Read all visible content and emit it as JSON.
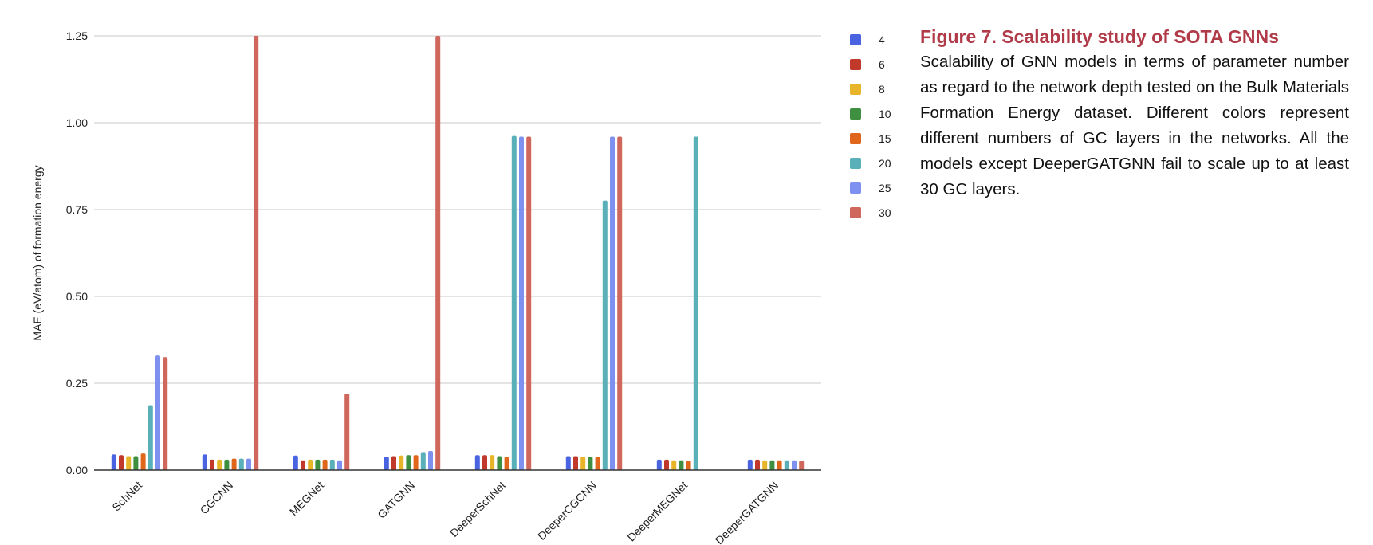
{
  "caption": {
    "title": "Figure 7.  Scalability study of SOTA GNNs",
    "body": "Scalability of GNN models in terms of parameter number as regard to the network depth tested on the Bulk Materials Formation Energy dataset. Different colors represent different numbers of GC layers in the networks. All the models except DeeperGATGNN fail to scale up to at least 30 GC layers."
  },
  "chart_data": {
    "type": "bar",
    "title": "",
    "xlabel": "",
    "ylabel": "MAE (eV/atom) of formation energy",
    "ylim": [
      0,
      1.25
    ],
    "yticks": [
      "0.00",
      "0.25",
      "0.50",
      "0.75",
      "1.00",
      "1.25"
    ],
    "grid": true,
    "legend_position": "right",
    "categories": [
      "SchNet",
      "CGCNN",
      "MEGNet",
      "GATGNN",
      "DeeperSchNet",
      "DeeperCGCNN",
      "DeeperMEGNet",
      "DeeperGATGNN"
    ],
    "series": [
      {
        "name": "4",
        "color": "#4a63e0",
        "values": [
          0.045,
          0.045,
          0.042,
          0.038,
          0.043,
          0.04,
          0.03,
          0.03
        ]
      },
      {
        "name": "6",
        "color": "#c0392b",
        "values": [
          0.043,
          0.03,
          0.028,
          0.04,
          0.043,
          0.04,
          0.03,
          0.03
        ]
      },
      {
        "name": "8",
        "color": "#e8b52a",
        "values": [
          0.04,
          0.03,
          0.03,
          0.042,
          0.043,
          0.038,
          0.028,
          0.028
        ]
      },
      {
        "name": "10",
        "color": "#3e9040",
        "values": [
          0.04,
          0.03,
          0.03,
          0.043,
          0.04,
          0.038,
          0.028,
          0.028
        ]
      },
      {
        "name": "15",
        "color": "#e0661c",
        "values": [
          0.048,
          0.033,
          0.03,
          0.043,
          0.038,
          0.038,
          0.027,
          0.028
        ]
      },
      {
        "name": "20",
        "color": "#5ab0b8",
        "values": [
          0.187,
          0.033,
          0.03,
          0.052,
          0.962,
          0.776,
          0.96,
          0.028
        ]
      },
      {
        "name": "25",
        "color": "#7f91f0",
        "values": [
          0.33,
          0.033,
          0.028,
          0.055,
          0.96,
          0.96,
          null,
          0.028
        ]
      },
      {
        "name": "30",
        "color": "#d0675c",
        "values": [
          0.325,
          1.25,
          0.22,
          1.25,
          0.96,
          0.96,
          null,
          0.027
        ]
      }
    ]
  }
}
